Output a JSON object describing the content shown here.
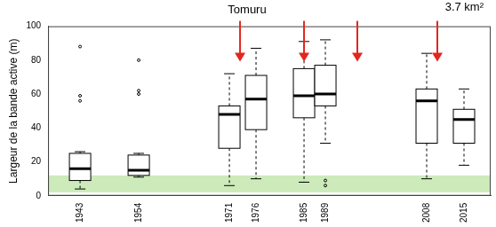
{
  "chart_data": {
    "type": "boxplot",
    "title": "Tomuru",
    "annotations": [
      "3.7 km²"
    ],
    "y_label": "Largeur de la bande active (m)",
    "x": [
      1943,
      1954,
      1971,
      1976,
      1985,
      1989,
      2008,
      2015
    ],
    "boxes": [
      {
        "min": 4,
        "q1": 9,
        "median": 16,
        "q3": 25,
        "max": 26,
        "outliers": [
          88,
          59,
          56
        ]
      },
      {
        "min": 11,
        "q1": 12,
        "median": 15,
        "q3": 24,
        "max": 25,
        "outliers": [
          80,
          62,
          60
        ]
      },
      {
        "min": 6,
        "q1": 28,
        "median": 48,
        "q3": 53,
        "max": 72,
        "outliers": []
      },
      {
        "min": 10,
        "q1": 39,
        "median": 57,
        "q3": 71,
        "max": 87,
        "outliers": []
      },
      {
        "min": 8,
        "q1": 46,
        "median": 59,
        "q3": 75,
        "max": 91,
        "outliers": []
      },
      {
        "min": 31,
        "q1": 53,
        "median": 60,
        "q3": 77,
        "max": 92,
        "outliers": [
          9,
          6
        ]
      },
      {
        "min": 10,
        "q1": 31,
        "median": 56,
        "q3": 63,
        "max": 84,
        "outliers": []
      },
      {
        "min": 18,
        "q1": 31,
        "median": 45,
        "q3": 51,
        "max": 63,
        "outliers": []
      }
    ],
    "band": [
      2,
      12
    ],
    "events": [
      1973,
      1985,
      1995,
      2010
    ],
    "color": "#000000",
    "xlim": [
      1937,
      2020
    ],
    "xticks": [
      1943,
      1954,
      1971,
      1976,
      1985,
      1989,
      2008,
      2015
    ],
    "ylim": [
      0,
      100
    ],
    "yticks": [
      0,
      20,
      40,
      60,
      80,
      100
    ],
    "grid": false
  }
}
